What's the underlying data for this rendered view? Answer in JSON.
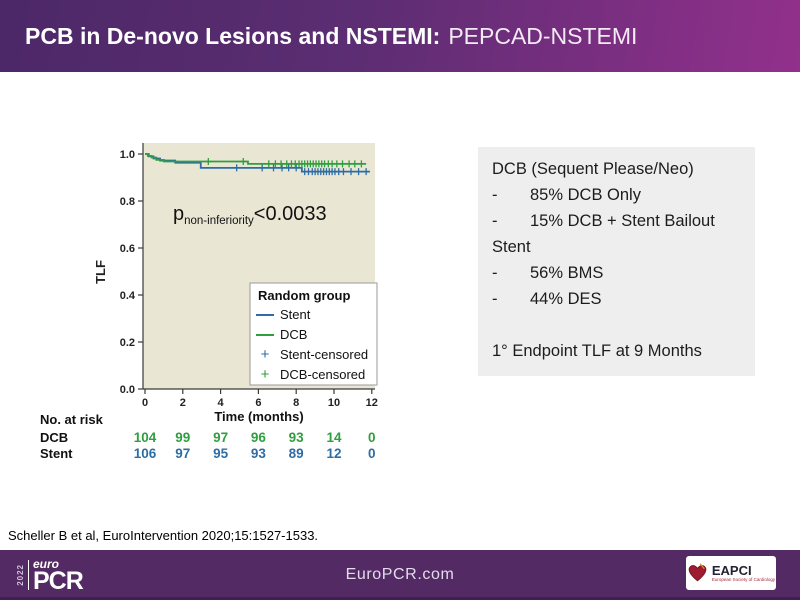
{
  "header": {
    "title_bold": "PCB in De-novo Lesions and NSTEMI:",
    "title_regular": "PEPCAD-NSTEMI",
    "bg_left": "#4c2868",
    "bg_right": "#92308c"
  },
  "chart_data": {
    "type": "line",
    "subtype": "kaplan-meier-step",
    "xlabel": "Time (months)",
    "ylabel": "TLF",
    "xlim": [
      0,
      12.3
    ],
    "ylim": [
      0,
      1.05
    ],
    "xticks": [
      0,
      2,
      4,
      6,
      8,
      10,
      12
    ],
    "yticks": [
      "0.0",
      "0.2",
      "0.4",
      "0.6",
      "0.8",
      "1.0"
    ],
    "plot_bg": "#e9e6d4",
    "axis_color": "#3a3a3a",
    "annotation": {
      "prefix": "p",
      "subscript": "non-inferiority",
      "value": "<0.0033"
    },
    "legend": {
      "title": "Random group",
      "items": [
        {
          "label": "Stent",
          "marker": "line",
          "color": "#2e6da4"
        },
        {
          "label": "DCB",
          "marker": "line",
          "color": "#2f9e3f"
        },
        {
          "label": "Stent-censored",
          "marker": "plus",
          "color": "#2e6da4"
        },
        {
          "label": "DCB-censored",
          "marker": "plus",
          "color": "#2f9e3f"
        }
      ]
    },
    "series": [
      {
        "name": "Stent",
        "color": "#2e6da4",
        "points": [
          [
            0,
            1.0
          ],
          [
            0.2,
            0.99
          ],
          [
            0.45,
            0.981
          ],
          [
            0.8,
            0.972
          ],
          [
            1.6,
            0.963
          ],
          [
            2.95,
            0.941
          ],
          [
            8.3,
            0.925
          ]
        ],
        "end_x": 11.9,
        "censored": [
          4.85,
          6.2,
          6.8,
          7.25,
          7.6,
          8.0,
          8.45,
          8.65,
          8.85,
          9.0,
          9.15,
          9.3,
          9.45,
          9.6,
          9.75,
          9.9,
          10.05,
          10.25,
          10.5,
          10.9,
          11.3,
          11.7
        ]
      },
      {
        "name": "DCB",
        "color": "#2f9e3f",
        "points": [
          [
            0,
            1.0
          ],
          [
            0.15,
            0.992
          ],
          [
            0.35,
            0.985
          ],
          [
            0.6,
            0.975
          ],
          [
            1.0,
            0.968
          ],
          [
            5.45,
            0.958
          ]
        ],
        "end_x": 11.7,
        "censored": [
          3.35,
          5.2,
          6.55,
          6.9,
          7.2,
          7.5,
          7.75,
          7.95,
          8.15,
          8.3,
          8.45,
          8.6,
          8.75,
          8.9,
          9.05,
          9.2,
          9.35,
          9.5,
          9.7,
          9.9,
          10.15,
          10.45,
          10.8,
          11.1,
          11.45
        ]
      }
    ],
    "at_risk": {
      "title": "No. at risk",
      "time_points": [
        0,
        2,
        4,
        6,
        8,
        10,
        12
      ],
      "rows": [
        {
          "label": "DCB",
          "color": "#2f9e3f",
          "values": [
            104,
            99,
            97,
            96,
            93,
            14,
            0
          ]
        },
        {
          "label": "Stent",
          "color": "#2e6da4",
          "values": [
            106,
            97,
            95,
            93,
            89,
            12,
            0
          ]
        }
      ]
    }
  },
  "infobox": {
    "bg": "#eeeeee",
    "lines": [
      {
        "dash": "",
        "text": "DCB (Sequent Please/Neo)"
      },
      {
        "dash": "-",
        "text": "85% DCB Only"
      },
      {
        "dash": "-",
        "text": "15% DCB + Stent Bailout"
      },
      {
        "dash": "",
        "text": "Stent"
      },
      {
        "dash": "-",
        "text": "56% BMS"
      },
      {
        "dash": "-",
        "text": "44% DES"
      },
      {
        "dash": "",
        "text": ""
      },
      {
        "dash": "",
        "text": "1° Endpoint TLF at 9 Months"
      }
    ]
  },
  "citation": "Scheller B et al, EuroIntervention 2020;15:1527-1533.",
  "footer": {
    "bg": "#532a64",
    "site": "EuroPCR.com",
    "logo": {
      "year": "2022",
      "euro": "euro",
      "pcr": "PCR"
    },
    "eapci": {
      "name": "EAPCI",
      "sub": "European Society of Cardiology"
    }
  }
}
